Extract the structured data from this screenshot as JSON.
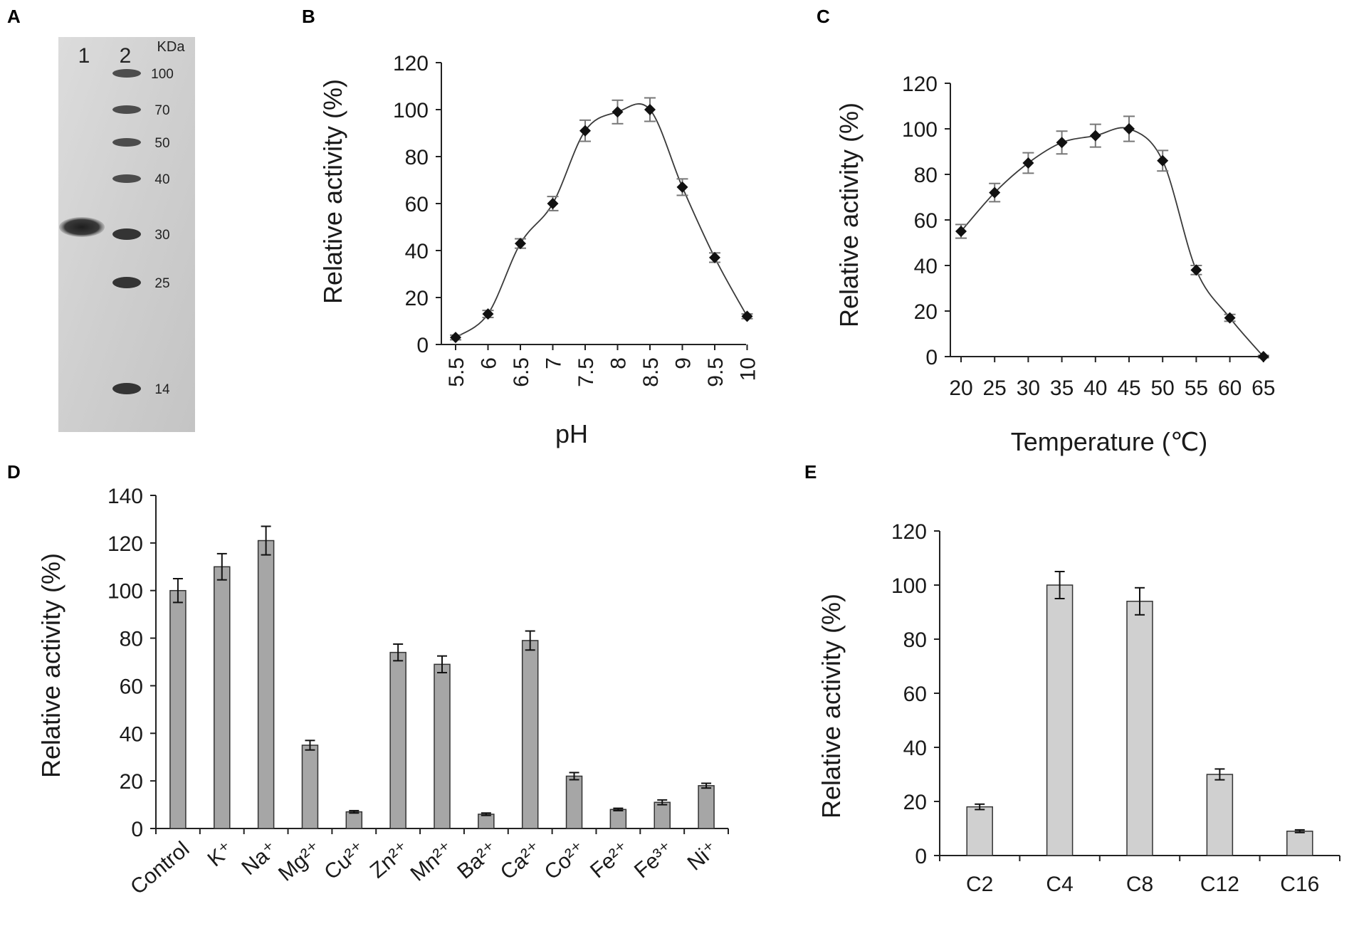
{
  "panel_labels": [
    "A",
    "B",
    "C",
    "D",
    "E"
  ],
  "gel": {
    "lane_labels": [
      "1",
      "2"
    ],
    "unit": "KDa",
    "markers": [
      {
        "kda": "100",
        "value": 100
      },
      {
        "kda": "70",
        "value": 70
      },
      {
        "kda": "50",
        "value": 50
      },
      {
        "kda": "40",
        "value": 40
      },
      {
        "kda": "30",
        "value": 30
      },
      {
        "kda": "25",
        "value": 25
      },
      {
        "kda": "14",
        "value": 14
      }
    ],
    "sample_band_kda": 31
  },
  "chart_data": [
    {
      "panel": "B",
      "type": "line",
      "title": "",
      "xlabel": "pH",
      "ylabel": "Relative activity (%)",
      "categories": [
        "5.5",
        "6",
        "6.5",
        "7",
        "7.5",
        "8",
        "8.5",
        "9",
        "9.5",
        "10"
      ],
      "values": [
        3,
        13,
        43,
        60,
        91,
        99,
        100,
        67,
        37,
        12
      ],
      "errors": [
        1,
        1.5,
        2,
        3,
        4.5,
        5,
        5,
        3.5,
        2,
        1
      ],
      "ylim": [
        0,
        120
      ],
      "yticks": [
        "0",
        "20",
        "40",
        "60",
        "80",
        "100",
        "120"
      ],
      "marker": "diamond",
      "grid": false
    },
    {
      "panel": "C",
      "type": "line",
      "title": "",
      "xlabel": "Temperature (℃)",
      "ylabel": "Relative activity (%)",
      "categories": [
        "20",
        "25",
        "30",
        "35",
        "40",
        "45",
        "50",
        "55",
        "60",
        "65"
      ],
      "values": [
        55,
        72,
        85,
        94,
        97,
        100,
        86,
        38,
        17,
        0
      ],
      "errors": [
        3,
        4,
        4.5,
        5,
        5,
        5.5,
        4.5,
        2,
        1.5,
        0.5
      ],
      "ylim": [
        0,
        120
      ],
      "yticks": [
        "0",
        "20",
        "40",
        "60",
        "80",
        "100",
        "120"
      ],
      "marker": "diamond",
      "grid": false
    },
    {
      "panel": "D",
      "type": "bar",
      "title": "",
      "xlabel": "",
      "ylabel": "Relative activity (%)",
      "categories": [
        "Control",
        "K⁺",
        "Na⁺",
        "Mg²⁺",
        "Cu²⁺",
        "Zn²⁺",
        "Mn²⁺",
        "Ba²⁺",
        "Ca²⁺",
        "Co²⁺",
        "Fe²⁺",
        "Fe³⁺",
        "Ni⁺"
      ],
      "values": [
        100,
        110,
        121,
        35,
        7,
        74,
        69,
        6,
        79,
        22,
        8,
        11,
        18
      ],
      "errors": [
        5,
        5.5,
        6,
        2,
        0.5,
        3.5,
        3.5,
        0.5,
        4,
        1.5,
        0.5,
        1,
        1
      ],
      "ylim": [
        0,
        140
      ],
      "yticks": [
        "0",
        "20",
        "40",
        "60",
        "80",
        "100",
        "120",
        "140"
      ],
      "bar_color": "#a6a6a6",
      "grid": false
    },
    {
      "panel": "E",
      "type": "bar",
      "title": "",
      "xlabel": "",
      "ylabel": "Relative activity (%)",
      "categories": [
        "C2",
        "C4",
        "C8",
        "C12",
        "C16"
      ],
      "values": [
        18,
        100,
        94,
        30,
        9
      ],
      "errors": [
        1,
        5,
        5,
        2,
        0.5
      ],
      "ylim": [
        0,
        120
      ],
      "yticks": [
        "0",
        "20",
        "40",
        "60",
        "80",
        "100",
        "120"
      ],
      "bar_color": "#d0d0d0",
      "grid": false
    }
  ]
}
